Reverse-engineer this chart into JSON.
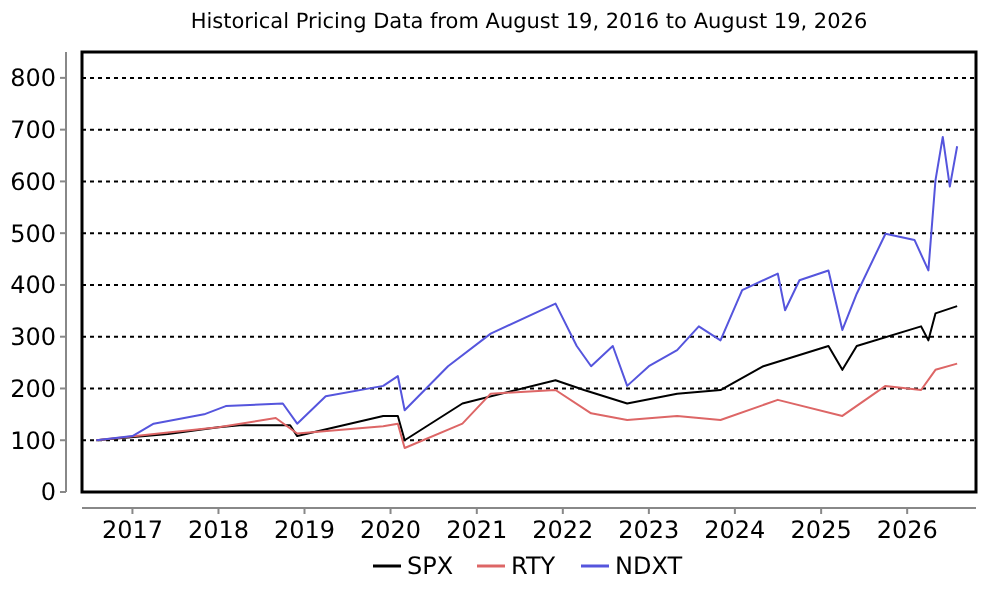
{
  "chart_data": {
    "type": "line",
    "title": "Historical Pricing Data from August 19, 2016 to August 19, 2026",
    "xlim": [
      "2016-06-01",
      "2026-10-20"
    ],
    "xticks": [
      "2017",
      "2018",
      "2019",
      "2020",
      "2021",
      "2022",
      "2023",
      "2024",
      "2025",
      "2026"
    ],
    "ylim": [
      0,
      850
    ],
    "yticks": [
      0,
      100,
      200,
      300,
      400,
      500,
      600,
      700,
      800
    ],
    "grid": "y",
    "legend": "bottom",
    "line_style": "solid",
    "marker": "none",
    "series": [
      {
        "name": "SPX",
        "color": "#000000",
        "x": [
          "2016-08",
          "2017-06",
          "2018-01",
          "2018-04",
          "2018-11",
          "2018-12",
          "2019-12",
          "2020-02",
          "2020-03",
          "2020-11",
          "2021-12",
          "2022-04",
          "2022-10",
          "2023-05",
          "2023-11",
          "2024-05",
          "2025-02",
          "2025-04",
          "2025-06",
          "2026-03",
          "2026-04",
          "2026-05",
          "2026-08"
        ],
        "values": [
          100,
          112,
          125,
          129,
          129,
          108,
          147,
          147,
          100,
          171,
          216,
          197,
          171,
          190,
          197,
          243,
          282,
          236,
          282,
          320,
          293,
          345,
          359
        ]
      },
      {
        "name": "RTY",
        "color": "#dd6666",
        "x": [
          "2016-08",
          "2017-06",
          "2018-01",
          "2018-09",
          "2018-12",
          "2019-12",
          "2020-02",
          "2020-03",
          "2020-11",
          "2021-03",
          "2021-12",
          "2022-05",
          "2022-10",
          "2023-05",
          "2023-11",
          "2024-07",
          "2025-04",
          "2025-10",
          "2026-03",
          "2026-05",
          "2026-08"
        ],
        "values": [
          100,
          115,
          125,
          143,
          113,
          127,
          132,
          85,
          132,
          190,
          197,
          152,
          139,
          147,
          139,
          178,
          147,
          205,
          197,
          236,
          248
        ]
      },
      {
        "name": "NDXT",
        "color": "#5555dd",
        "x": [
          "2016-08",
          "2017-01",
          "2017-04",
          "2017-11",
          "2018-02",
          "2018-10",
          "2018-12",
          "2019-04",
          "2019-12",
          "2020-02",
          "2020-03",
          "2020-09",
          "2021-03",
          "2021-12",
          "2022-03",
          "2022-05",
          "2022-08",
          "2022-10",
          "2023-01",
          "2023-05",
          "2023-08",
          "2023-11",
          "2024-02",
          "2024-07",
          "2024-08",
          "2024-10",
          "2025-02",
          "2025-04",
          "2025-06",
          "2025-10",
          "2026-02",
          "2026-04",
          "2026-05",
          "2026-06",
          "2026-07",
          "2026-08"
        ],
        "values": [
          100,
          108,
          132,
          150,
          166,
          171,
          132,
          185,
          205,
          224,
          158,
          243,
          306,
          364,
          282,
          243,
          282,
          205,
          243,
          274,
          320,
          293,
          390,
          422,
          351,
          409,
          428,
          313,
          383,
          499,
          487,
          428,
          602,
          686,
          590,
          668
        ]
      }
    ]
  }
}
